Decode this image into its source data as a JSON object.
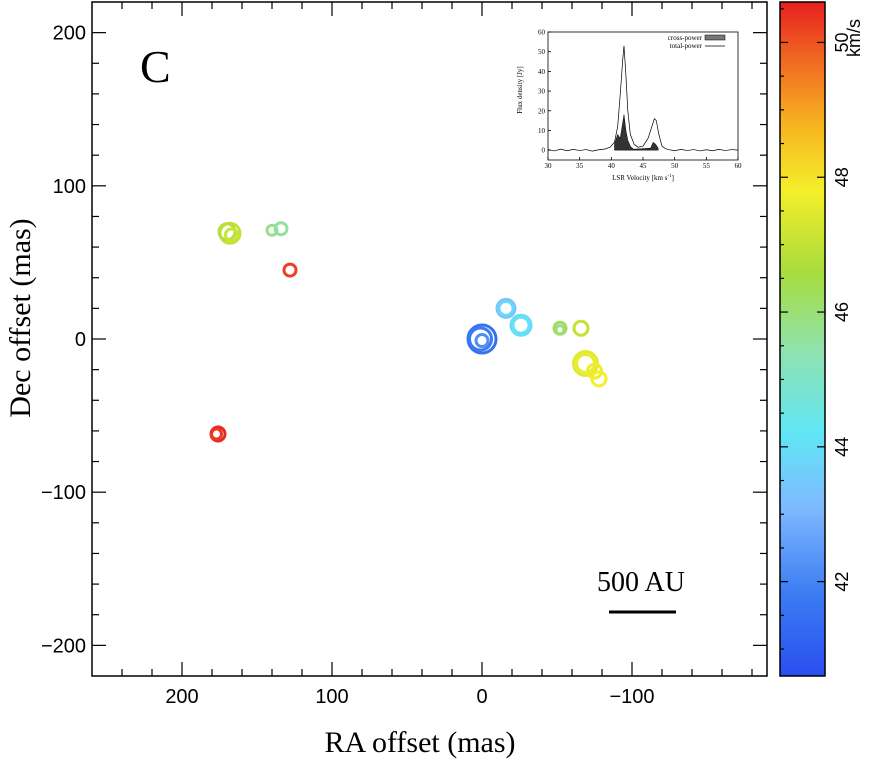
{
  "chart_data": [
    {
      "type": "scatter",
      "panel_label": "C",
      "xlabel": "RA offset (mas)",
      "ylabel": "Dec offset (mas)",
      "xlim": [
        260,
        -190
      ],
      "ylim": [
        -220,
        220
      ],
      "xticks": [
        200,
        100,
        0,
        -100
      ],
      "xtick_labels": [
        "200",
        "100",
        "0",
        "−100"
      ],
      "yticks": [
        200,
        100,
        0,
        -100,
        -200
      ],
      "ytick_labels": [
        "200",
        "100",
        "0",
        "−100",
        "−200"
      ],
      "colorbar": {
        "unit": "km/s",
        "range": [
          40.6,
          50.6
        ],
        "ticks": [
          42,
          44,
          46,
          48,
          50
        ],
        "tick_labels": [
          "42",
          "44",
          "46",
          "48",
          "50"
        ]
      },
      "scale_bar": {
        "label": "500 AU"
      },
      "points": [
        {
          "x": 0,
          "y": 0,
          "v": 41.5,
          "size": 14
        },
        {
          "x": 1,
          "y": 0,
          "v": 41.8,
          "size": 11
        },
        {
          "x": 0,
          "y": -1,
          "v": 42.2,
          "size": 6
        },
        {
          "x": -16,
          "y": 20,
          "v": 43.4,
          "size": 9
        },
        {
          "x": -16,
          "y": 20,
          "v": 43.8,
          "size": 7
        },
        {
          "x": -26,
          "y": 9,
          "v": 43.9,
          "size": 10
        },
        {
          "x": -26,
          "y": 9,
          "v": 44.1,
          "size": 8
        },
        {
          "x": 168,
          "y": 69,
          "v": 47.0,
          "size": 10
        },
        {
          "x": 170,
          "y": 70,
          "v": 46.8,
          "size": 8
        },
        {
          "x": 167,
          "y": 68,
          "v": 47.1,
          "size": 6
        },
        {
          "x": 140,
          "y": 71,
          "v": 45.8,
          "size": 5
        },
        {
          "x": 134,
          "y": 72,
          "v": 45.6,
          "size": 6
        },
        {
          "x": 128,
          "y": 45,
          "v": 50.2,
          "size": 6
        },
        {
          "x": 176,
          "y": -62,
          "v": 50.5,
          "size": 7
        },
        {
          "x": 177,
          "y": -62,
          "v": 50.3,
          "size": 5
        },
        {
          "x": -52,
          "y": 7,
          "v": 46.2,
          "size": 6
        },
        {
          "x": -52,
          "y": 6,
          "v": 46.0,
          "size": 4
        },
        {
          "x": -66,
          "y": 7,
          "v": 47.0,
          "size": 7
        },
        {
          "x": -69,
          "y": -16,
          "v": 47.5,
          "size": 12
        },
        {
          "x": -69,
          "y": -16,
          "v": 47.6,
          "size": 9
        },
        {
          "x": -75,
          "y": -21,
          "v": 47.7,
          "size": 7
        },
        {
          "x": -78,
          "y": -26,
          "v": 47.8,
          "size": 7
        }
      ]
    },
    {
      "type": "line",
      "xlabel": "LSR Velocity [km s",
      "xlabel_sup": "-1",
      "xlabel_end": "]",
      "ylabel": "Flux density [Jy]",
      "xlim": [
        30,
        60
      ],
      "ylim": [
        -5,
        60
      ],
      "xticks": [
        30,
        35,
        40,
        45,
        50,
        55,
        60
      ],
      "xtick_labels": [
        "30",
        "35",
        "40",
        "45",
        "50",
        "55",
        "60"
      ],
      "yticks": [
        0,
        10,
        20,
        30,
        40,
        50,
        60
      ],
      "ytick_labels": [
        "0",
        "10",
        "20",
        "30",
        "40",
        "50",
        "60"
      ],
      "legend": [
        "cross-power",
        "total-power"
      ],
      "series": [
        {
          "name": "total-power",
          "x": [
            30,
            31,
            32,
            33,
            34,
            35,
            36,
            37,
            38,
            39,
            39.8,
            40.5,
            41.0,
            41.4,
            41.8,
            42.0,
            42.3,
            42.6,
            43.0,
            43.6,
            44.2,
            45.0,
            45.8,
            46.4,
            46.8,
            47.1,
            47.5,
            48.0,
            48.5,
            49.0,
            50,
            51,
            52,
            53,
            54,
            55,
            56,
            57,
            58,
            59,
            60
          ],
          "y": [
            0.3,
            -0.4,
            0.5,
            -0.3,
            0.4,
            -0.2,
            0.3,
            -0.5,
            0.2,
            0.6,
            1.5,
            4,
            12,
            28,
            46,
            53,
            38,
            20,
            8,
            3,
            1.5,
            2,
            6,
            12,
            16,
            15,
            8,
            2,
            0.8,
            0.3,
            -0.3,
            0.4,
            -0.2,
            0.3,
            -0.4,
            0.2,
            -0.3,
            0.4,
            -0.2,
            0.3,
            0
          ]
        },
        {
          "name": "cross-power",
          "x": [
            40.5,
            41.0,
            41.4,
            41.8,
            42.0,
            42.3,
            42.6,
            43.0,
            43.5,
            46.2,
            46.6,
            47.0,
            47.4
          ],
          "y": [
            3,
            8,
            6,
            14,
            18,
            10,
            5,
            2,
            0.5,
            1,
            4,
            3,
            1
          ]
        }
      ]
    }
  ]
}
